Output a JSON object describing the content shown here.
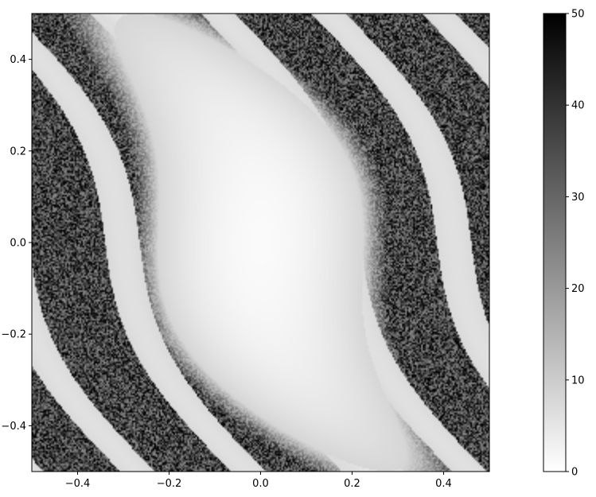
{
  "chart_data": {
    "type": "heatmap",
    "title": "",
    "xlabel": "",
    "ylabel": "",
    "xlim": [
      -0.5,
      0.5
    ],
    "ylim": [
      -0.5,
      0.5
    ],
    "x_ticks": [
      -0.4,
      -0.2,
      0.0,
      0.2,
      0.4
    ],
    "y_ticks": [
      -0.4,
      -0.2,
      0.0,
      0.2,
      0.4
    ],
    "x_tick_labels": [
      "−0.4",
      "−0.2",
      "0.0",
      "0.2",
      "0.4"
    ],
    "y_tick_labels": [
      "−0.4",
      "−0.2",
      "0.0",
      "0.2",
      "0.4"
    ],
    "colorbar": {
      "range": [
        0,
        50
      ],
      "ticks": [
        0,
        10,
        20,
        30,
        40,
        50
      ],
      "tick_labels": [
        "0",
        "10",
        "20",
        "30",
        "40",
        "50"
      ],
      "colormap": "gray_r"
    },
    "description_of_field": {
      "minimum_at": [
        0.0,
        0.0
      ],
      "minimum_value": 0,
      "smooth_region_values": [
        1,
        8
      ],
      "chaotic_band_values": [
        10,
        50
      ]
    },
    "grid": false
  },
  "colors": {
    "colormap_low": "#ffffff",
    "colormap_high": "#000000"
  }
}
